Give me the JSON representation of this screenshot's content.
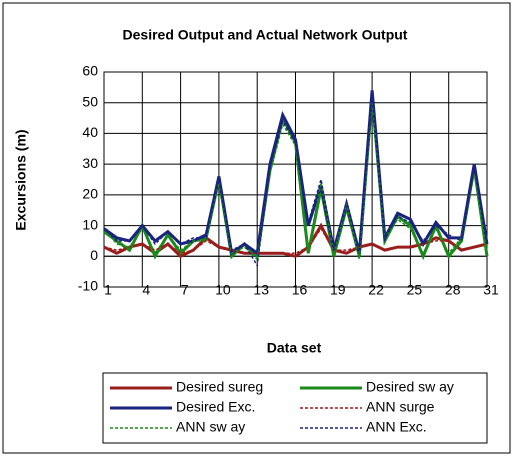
{
  "chart_data": {
    "type": "line",
    "title": "Desired Output and Actual Network Output",
    "x_label": "Data set",
    "y_label": "Excursions (m)",
    "x": [
      1,
      2,
      3,
      4,
      5,
      6,
      7,
      8,
      9,
      10,
      11,
      12,
      13,
      14,
      15,
      16,
      17,
      18,
      19,
      20,
      21,
      22,
      23,
      24,
      25,
      26,
      27,
      28,
      29,
      30,
      31
    ],
    "xlim": [
      1,
      31
    ],
    "xticks": [
      1,
      4,
      7,
      10,
      13,
      16,
      19,
      22,
      25,
      28,
      31
    ],
    "ylim": [
      -10,
      60
    ],
    "yticks": [
      -10,
      0,
      10,
      20,
      30,
      40,
      50,
      60
    ],
    "series": [
      {
        "name": "Desired sureg",
        "color": "#9b1c1c",
        "dash": "solid",
        "values": [
          3,
          1,
          3,
          4,
          1,
          4,
          0,
          2,
          6,
          3,
          2,
          1,
          1,
          1,
          1,
          0,
          3,
          10,
          2,
          1,
          3,
          4,
          2,
          3,
          3,
          4,
          6,
          5,
          2,
          3,
          4
        ]
      },
      {
        "name": "Desired sw ay",
        "color": "#1a8a1a",
        "dash": "solid",
        "values": [
          8,
          5,
          2,
          10,
          0,
          7,
          1,
          5,
          6,
          25,
          0,
          4,
          0,
          28,
          45,
          37,
          1,
          22,
          0,
          16,
          0,
          52,
          5,
          13,
          10,
          0,
          10,
          0,
          5,
          29,
          0
        ]
      },
      {
        "name": "Desired Exc.",
        "color": "#1a237e",
        "dash": "solid",
        "values": [
          9,
          6,
          5,
          10,
          5,
          8,
          4,
          5,
          7,
          26,
          1,
          4,
          1,
          30,
          46,
          38,
          10,
          23,
          2,
          17,
          1,
          54,
          6,
          14,
          12,
          4,
          11,
          6,
          6,
          30,
          4
        ]
      },
      {
        "name": "ANN surge",
        "color": "#9b1c1c",
        "dash": "dashed",
        "values": [
          3,
          2,
          3,
          4,
          2,
          4,
          1,
          2,
          5,
          3,
          2,
          1,
          1,
          1,
          1,
          1,
          3,
          9,
          2,
          2,
          3,
          4,
          2,
          3,
          3,
          4,
          5,
          5,
          2,
          3,
          4
        ]
      },
      {
        "name": "ANN sw ay",
        "color": "#1a8a1a",
        "dash": "dashed",
        "values": [
          9,
          4,
          3,
          9,
          1,
          7,
          2,
          5,
          5,
          24,
          1,
          3,
          -1,
          27,
          43,
          36,
          2,
          24,
          1,
          17,
          -1,
          50,
          6,
          12,
          9,
          1,
          9,
          1,
          6,
          27,
          1
        ]
      },
      {
        "name": "ANN Exc.",
        "color": "#1a237e",
        "dash": "dashed",
        "values": [
          9,
          5,
          5,
          10,
          4,
          8,
          4,
          6,
          6,
          25,
          2,
          4,
          -3,
          29,
          44,
          37,
          11,
          25,
          2,
          18,
          2,
          52,
          6,
          13,
          11,
          5,
          10,
          7,
          5,
          29,
          5
        ]
      }
    ]
  }
}
